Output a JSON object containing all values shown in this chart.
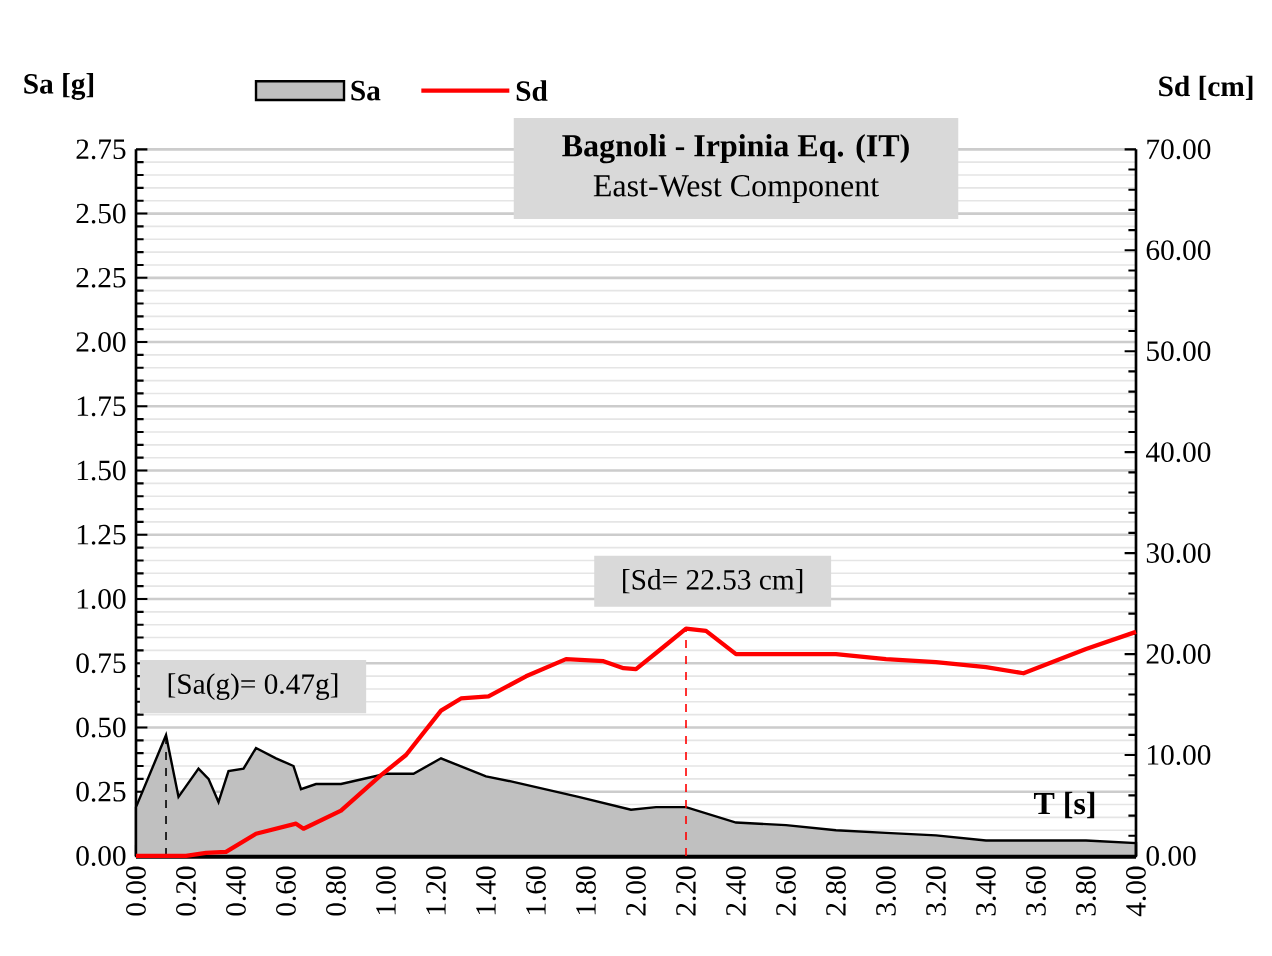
{
  "chart_data": {
    "type": "area",
    "title": "Bagnoli - Irpinia Eq. (IT)",
    "subtitle": "East-West Component",
    "xlabel": "T [s]",
    "ylabel": "Sa [g]",
    "y2label": "Sd [cm]",
    "x": [
      0,
      0.12,
      0.17,
      0.25,
      0.29,
      0.33,
      0.37,
      0.43,
      0.48,
      0.56,
      0.63,
      0.66,
      0.72,
      0.82,
      1.0,
      1.11,
      1.22,
      1.27,
      1.4,
      1.5,
      1.77,
      1.98,
      2.08,
      2.2,
      2.3,
      2.4,
      2.6,
      2.8,
      3.0,
      3.2,
      3.4,
      3.6,
      3.8,
      4.0
    ],
    "series": [
      {
        "name": "Sa",
        "color": "#c0c0c0",
        "values": [
          0.19,
          0.47,
          0.23,
          0.34,
          0.3,
          0.21,
          0.33,
          0.34,
          0.42,
          0.38,
          0.35,
          0.26,
          0.28,
          0.28,
          0.32,
          0.32,
          0.38,
          0.36,
          0.31,
          0.29,
          0.23,
          0.18,
          0.19,
          0.19,
          0.16,
          0.13,
          0.12,
          0.1,
          0.09,
          0.08,
          0.06,
          0.06,
          0.06,
          0.05
        ]
      },
      {
        "name": "Sd",
        "type": "line",
        "axis": "y2",
        "color": "#ff0000",
        "x": [
          0,
          0.2,
          0.28,
          0.36,
          0.48,
          0.64,
          0.67,
          0.82,
          0.98,
          1.08,
          1.22,
          1.3,
          1.41,
          1.56,
          1.72,
          1.87,
          1.95,
          2.0,
          2.1,
          2.2,
          2.28,
          2.4,
          2.6,
          2.8,
          3.0,
          3.2,
          3.4,
          3.55,
          3.8,
          4.0
        ],
        "values": [
          0,
          0,
          0.3,
          0.4,
          2.2,
          3.2,
          2.7,
          4.5,
          8,
          10,
          14.4,
          15.6,
          15.8,
          17.8,
          19.5,
          19.3,
          18.6,
          18.5,
          20.5,
          22.53,
          22.3,
          20,
          20,
          20,
          19.5,
          19.2,
          18.7,
          18.1,
          20.5,
          22.2
        ]
      }
    ],
    "annotations": [
      {
        "text": "[Sa(g)= 0.47g]",
        "x": 0.12,
        "y": 0.47
      },
      {
        "text": "[Sd= 22.53 cm]",
        "x": 2.2,
        "y": 0.885
      }
    ],
    "xlim": [
      0,
      4
    ],
    "xticks": [
      {
        "value": 0,
        "label": "0.00"
      },
      {
        "value": 0.2,
        "label": "0.20"
      },
      {
        "value": 0.4,
        "label": "0.40"
      },
      {
        "value": 0.6,
        "label": "0.60"
      },
      {
        "value": 0.8,
        "label": "0.80"
      },
      {
        "value": 1,
        "label": "1.00"
      },
      {
        "value": 1.2,
        "label": "1.20"
      },
      {
        "value": 1.4,
        "label": "1.40"
      },
      {
        "value": 1.6,
        "label": "1.60"
      },
      {
        "value": 1.8,
        "label": "1.80"
      },
      {
        "value": 2,
        "label": "2.00"
      },
      {
        "value": 2.2,
        "label": "2.20"
      },
      {
        "value": 2.4,
        "label": "2.40"
      },
      {
        "value": 2.6,
        "label": "2.60"
      },
      {
        "value": 2.8,
        "label": "2.80"
      },
      {
        "value": 3,
        "label": "3.00"
      },
      {
        "value": 3.2,
        "label": "3.20"
      },
      {
        "value": 3.4,
        "label": "3.40"
      },
      {
        "value": 3.6,
        "label": "3.60"
      },
      {
        "value": 3.8,
        "label": "3.80"
      },
      {
        "value": 4,
        "label": "4.00"
      }
    ],
    "ylim": [
      0,
      2.75
    ],
    "yticks": [
      {
        "value": 0,
        "label": "0.00"
      },
      0.25,
      {
        "value": 0.5,
        "label": "0.50"
      },
      0.75,
      {
        "value": 1,
        "label": "1.00"
      },
      1.25,
      {
        "value": 1.5,
        "label": "1.50"
      },
      1.75,
      {
        "value": 2,
        "label": "2.00"
      },
      2.25,
      {
        "value": 2.5,
        "label": "2.50"
      },
      2.75
    ],
    "y2lim": [
      0,
      70
    ],
    "y2ticks": [
      {
        "value": 0,
        "label": "0.00"
      },
      {
        "value": 10,
        "label": "10.00"
      },
      {
        "value": 20,
        "label": "20.00"
      },
      {
        "value": 30,
        "label": "30.00"
      },
      {
        "value": 40,
        "label": "40.00"
      },
      {
        "value": 50,
        "label": "50.00"
      },
      {
        "value": 60,
        "label": "60.00"
      },
      {
        "value": 70,
        "label": "70.00"
      }
    ],
    "grid": "y",
    "legend": "top"
  }
}
